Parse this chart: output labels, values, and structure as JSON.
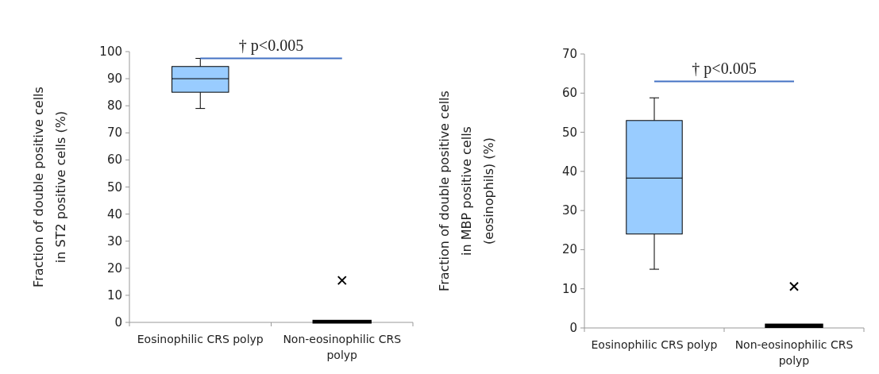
{
  "chart_data": [
    {
      "type": "box",
      "categories": [
        "Eosinophilic CRS polyp",
        "Non-eosinophilic CRS polyp"
      ],
      "ylabel": "Fraction of double positive cells in ST2 positive cells (%)",
      "ylim": [
        0,
        100
      ],
      "yticks": [
        0,
        10,
        20,
        30,
        40,
        50,
        60,
        70,
        80,
        90,
        100
      ],
      "color": "#99ccff",
      "ref_lines": [
        {
          "axis": "y",
          "value": 97.5,
          "label": "† p<0.005",
          "color": "#4472c4"
        }
      ],
      "boxes": [
        {
          "low": 79,
          "q1": 85,
          "median": 90,
          "q3": 94.5,
          "high": 97.5
        },
        {
          "low": 0,
          "q1": 0,
          "median": 0.3,
          "q3": 0.5,
          "high": 0.5,
          "outliers": [
            15.5
          ]
        }
      ]
    },
    {
      "type": "box",
      "categories": [
        "Eosinophilic CRS polyp",
        "Non-eosinophilic CRS polyp"
      ],
      "ylabel": "Fraction of double positive cells in MBP positive cells (eosinophils) (%)",
      "ylim": [
        0,
        70
      ],
      "yticks": [
        0,
        10,
        20,
        30,
        40,
        50,
        60,
        70
      ],
      "color": "#99ccff",
      "ref_lines": [
        {
          "axis": "y",
          "value": 63,
          "label": "† p<0.005",
          "color": "#4472c4"
        }
      ],
      "boxes": [
        {
          "low": 15,
          "q1": 24,
          "median": 38.3,
          "q3": 53,
          "high": 58.8
        },
        {
          "low": 0.3,
          "q1": 0.3,
          "median": 0.6,
          "q3": 0.8,
          "high": 0.8,
          "outliers": [
            10.6
          ]
        }
      ]
    }
  ]
}
